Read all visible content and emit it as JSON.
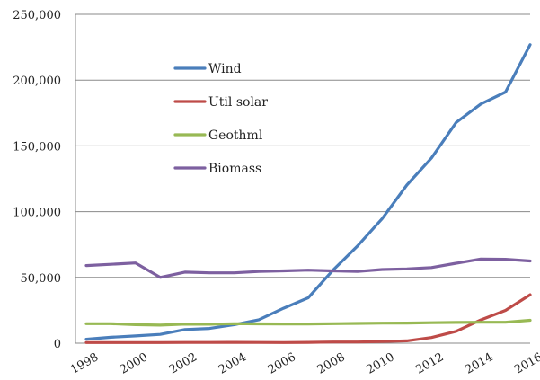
{
  "chart_data": {
    "type": "line",
    "title": "",
    "xlabel": "",
    "ylabel": "",
    "x": [
      1998,
      1999,
      2000,
      2001,
      2002,
      2003,
      2004,
      2005,
      2006,
      2007,
      2008,
      2009,
      2010,
      2011,
      2012,
      2013,
      2014,
      2015,
      2016
    ],
    "x_tick_labels": [
      "1998",
      "2000",
      "2002",
      "2004",
      "2006",
      "2008",
      "2010",
      "2012",
      "2014",
      "2016"
    ],
    "y_tick_labels": [
      "0",
      "50,000",
      "100,000",
      "150,000",
      "200,000",
      "250,000"
    ],
    "y_ticks": [
      0,
      50000,
      100000,
      150000,
      200000,
      250000
    ],
    "ylim": [
      0,
      250000
    ],
    "xlim": [
      1998,
      2016
    ],
    "grid": "horizontal",
    "legend_position": "upper-left",
    "series": [
      {
        "name": "Wind",
        "color": "#4a7ebb",
        "values": [
          3000,
          4500,
          5500,
          6700,
          10400,
          11200,
          14100,
          17800,
          26600,
          34500,
          55400,
          73900,
          94700,
          120200,
          140800,
          167800,
          181800,
          190900,
          226900
        ]
      },
      {
        "name": "Util solar",
        "color": "#be4b48",
        "values": [
          500,
          500,
          500,
          500,
          550,
          550,
          600,
          550,
          500,
          600,
          860,
          890,
          1200,
          1800,
          4300,
          9000,
          17700,
          24900,
          36800
        ]
      },
      {
        "name": "Geothml",
        "color": "#98b954",
        "values": [
          14800,
          14800,
          14100,
          13700,
          14500,
          14400,
          14800,
          14700,
          14600,
          14600,
          14800,
          15000,
          15200,
          15300,
          15600,
          15800,
          15900,
          15900,
          17400
        ]
      },
      {
        "name": "Biomass",
        "color": "#7d60a0",
        "values": [
          59000,
          60000,
          61000,
          50000,
          54000,
          53500,
          53500,
          54500,
          55000,
          55500,
          55000,
          54500,
          56000,
          56500,
          57500,
          60800,
          64000,
          63800,
          62500
        ]
      }
    ]
  }
}
